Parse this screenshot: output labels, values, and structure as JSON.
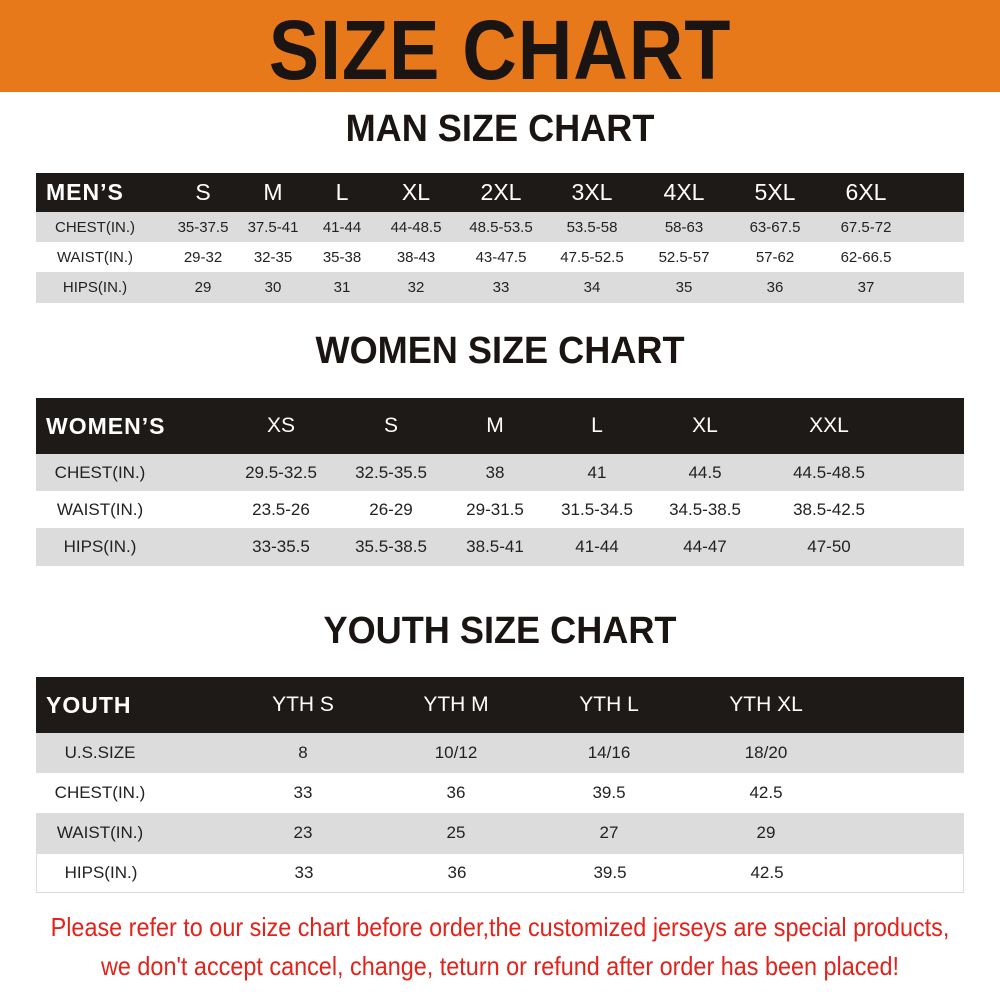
{
  "banner": {
    "title": "SIZE CHART",
    "color": "#e8791b"
  },
  "men": {
    "title": "MAN SIZE CHART",
    "header": [
      "MEN’S",
      "S",
      "M",
      "L",
      "XL",
      "2XL",
      "3XL",
      "4XL",
      "5XL",
      "6XL"
    ],
    "rows": [
      [
        "CHEST(IN.)",
        "35-37.5",
        "37.5-41",
        "41-44",
        "44-48.5",
        "48.5-53.5",
        "53.5-58",
        "58-63",
        "63-67.5",
        "67.5-72"
      ],
      [
        "WAIST(IN.)",
        "29-32",
        "32-35",
        "35-38",
        "38-43",
        "43-47.5",
        "47.5-52.5",
        "52.5-57",
        "57-62",
        "62-66.5"
      ],
      [
        "HIPS(IN.)",
        "29",
        "30",
        "31",
        "32",
        "33",
        "34",
        "35",
        "36",
        "37"
      ]
    ]
  },
  "women": {
    "title": "WOMEN SIZE CHART",
    "header": [
      "WOMEN’S",
      "XS",
      "S",
      "M",
      "L",
      "XL",
      "XXL"
    ],
    "rows": [
      [
        "CHEST(IN.)",
        "29.5-32.5",
        "32.5-35.5",
        "38",
        "41",
        "44.5",
        "44.5-48.5"
      ],
      [
        "WAIST(IN.)",
        "23.5-26",
        "26-29",
        "29-31.5",
        "31.5-34.5",
        "34.5-38.5",
        "38.5-42.5"
      ],
      [
        "HIPS(IN.)",
        "33-35.5",
        "35.5-38.5",
        "38.5-41",
        "41-44",
        "44-47",
        "47-50"
      ]
    ]
  },
  "youth": {
    "title": "YOUTH SIZE CHART",
    "header": [
      "YOUTH",
      "YTH S",
      "YTH M",
      "YTH L",
      "YTH XL"
    ],
    "rows": [
      [
        "U.S.SIZE",
        "8",
        "10/12",
        "14/16",
        "18/20"
      ],
      [
        "CHEST(IN.)",
        "33",
        "36",
        "39.5",
        "42.5"
      ],
      [
        "WAIST(IN.)",
        "23",
        "25",
        "27",
        "29"
      ],
      [
        "HIPS(IN.)",
        "33",
        "36",
        "39.5",
        "42.5"
      ]
    ]
  },
  "notice": {
    "line1": "Please refer to our size chart before order,the customized jerseys are special products,",
    "line2": "we don't accept cancel, change, teturn or refund after order has been placed!",
    "color": "#e3231b"
  }
}
